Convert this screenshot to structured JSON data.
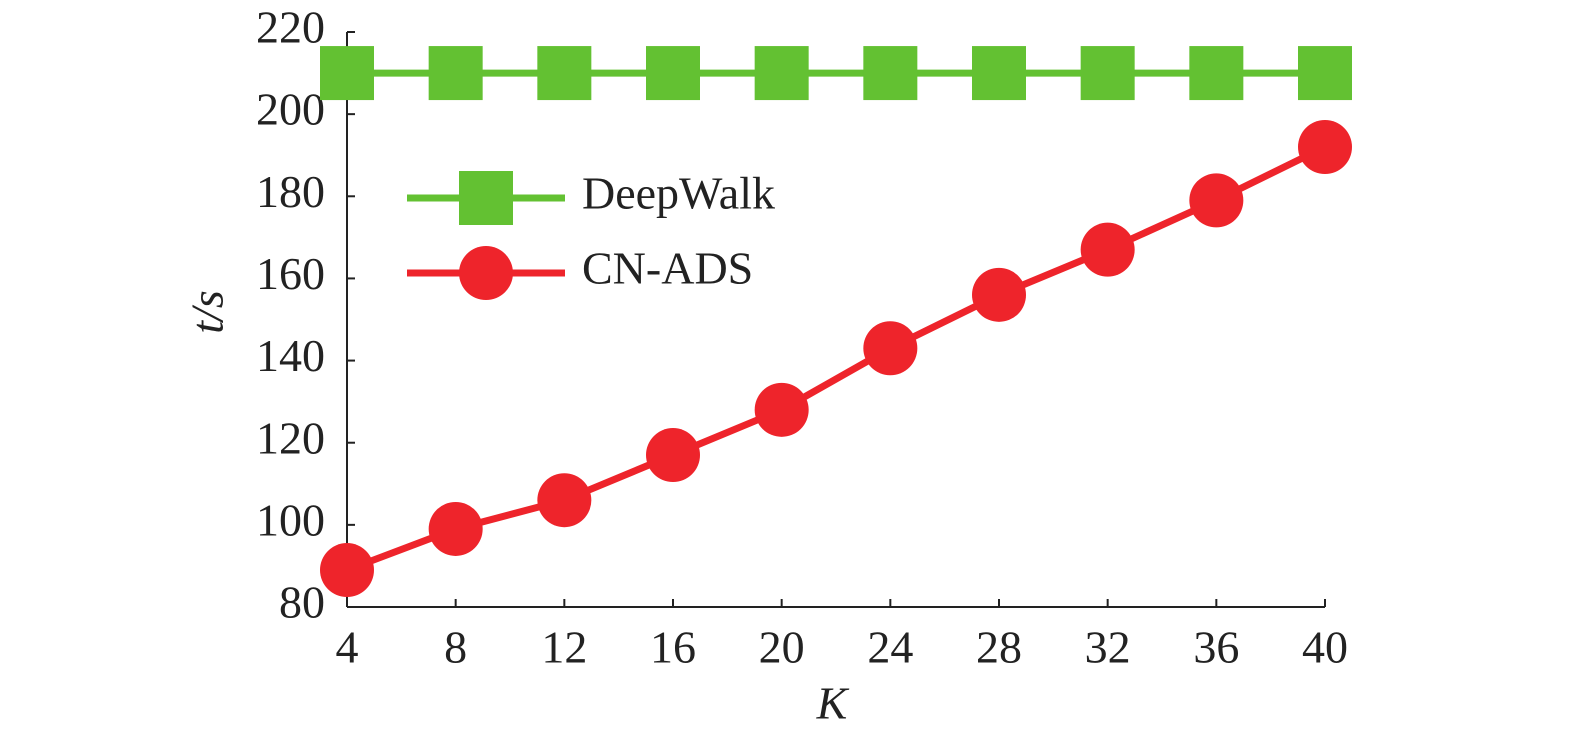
{
  "chart_data": {
    "type": "line",
    "x_label": "K",
    "y_label": "t/s",
    "x": [
      4,
      8,
      12,
      16,
      20,
      24,
      28,
      32,
      36,
      40
    ],
    "series": [
      {
        "name": "DeepWalk",
        "color": "#63c132",
        "marker": "square",
        "values": [
          210,
          210,
          210,
          210,
          210,
          210,
          210,
          210,
          210,
          210
        ]
      },
      {
        "name": "CN-ADS",
        "color": "#ee242b",
        "marker": "circle",
        "values": [
          89,
          99,
          106,
          117,
          128,
          143,
          156,
          167,
          179,
          192
        ]
      }
    ],
    "xlim": [
      4,
      40
    ],
    "xticks": [
      4,
      8,
      12,
      16,
      20,
      24,
      28,
      32,
      36,
      40
    ],
    "ylim": [
      80,
      220
    ],
    "yticks": [
      80,
      100,
      120,
      140,
      160,
      180,
      200,
      220
    ],
    "legend": "upper left"
  }
}
